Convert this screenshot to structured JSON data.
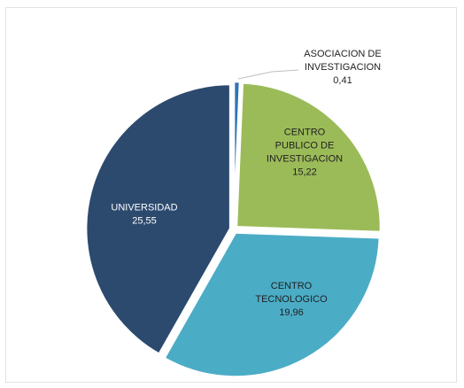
{
  "chart_data": {
    "type": "pie",
    "title": "",
    "legend": "none",
    "unit": "",
    "start": "top",
    "direction": "clockwise",
    "slices": [
      {
        "name": "ASOCIACION DE INVESTIGACION",
        "value": 0.41,
        "value_label": "0,41",
        "color": "#2e75b6",
        "label_lines": [
          "ASOCIACION DE",
          "INVESTIGACION",
          "0,41"
        ],
        "label_color": "#1f1f1f",
        "label_position": "outside-top-right"
      },
      {
        "name": "CENTRO PUBLICO DE INVESTIGACION",
        "value": 15.22,
        "value_label": "15,22",
        "color": "#9bbb59",
        "label_lines": [
          "CENTRO",
          "PUBLICO DE",
          "INVESTIGACION",
          "15,22"
        ],
        "label_color": "#1f1f1f",
        "label_position": "inside"
      },
      {
        "name": "CENTRO TECNOLOGICO",
        "value": 19.96,
        "value_label": "19,96",
        "color": "#4bacc6",
        "label_lines": [
          "CENTRO",
          "TECNOLOGICO",
          "19,96"
        ],
        "label_color": "#1f1f1f",
        "label_position": "inside"
      },
      {
        "name": "UNIVERSIDAD",
        "value": 25.55,
        "value_label": "25,55",
        "color": "#2c4a6e",
        "label_lines": [
          "UNIVERSIDAD",
          "25,55"
        ],
        "label_color": "#ffffff",
        "label_position": "inside"
      }
    ]
  }
}
